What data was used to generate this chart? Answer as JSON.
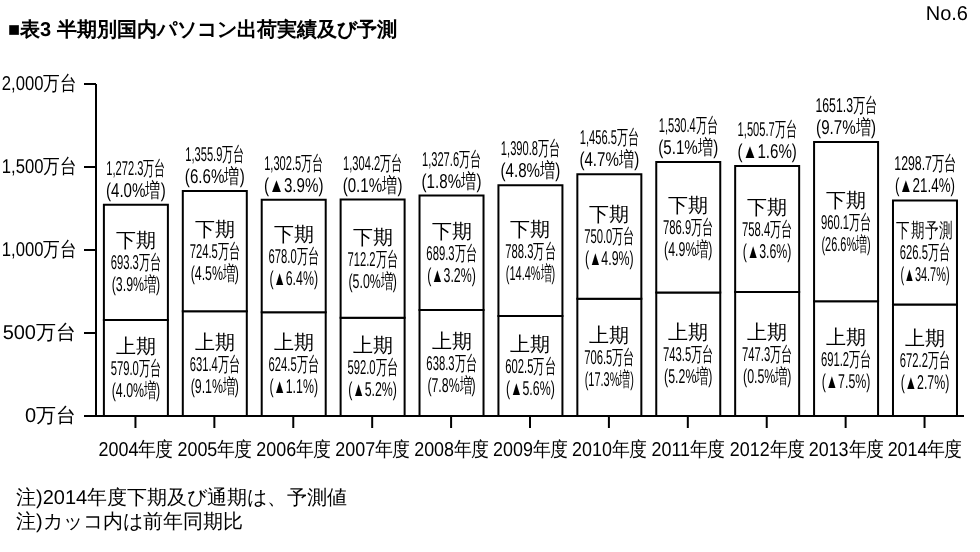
{
  "chart_data": {
    "type": "bar",
    "stacked": true,
    "title": "■表3 半期別国内パソコン出荷実績及び予測",
    "categories": [
      "2004年度",
      "2005年度",
      "2006年度",
      "2007年度",
      "2008年度",
      "2009年度",
      "2010年度",
      "2011年度",
      "2012年度",
      "2013年度",
      "2014年度"
    ],
    "series": [
      {
        "color": "#ffffff",
        "values": [
          579.0,
          631.4,
          624.5,
          592.0,
          638.3,
          602.5,
          706.5,
          743.5,
          747.3,
          691.2,
          672.2
        ],
        "value_labels": [
          "上期\n579.0万台\n(4.0%増)",
          "上期\n631.4万台\n(9.1%増)",
          "上期\n624.5万台\n(▲1.1%)",
          "上期\n592.0万台\n(▲5.2%)",
          "上期\n638.3万台\n(7.8%増)",
          "上期\n602.5万台\n(▲5.6%)",
          "上期\n706.5万台\n(17.3%増)",
          "上期\n743.5万台\n(5.2%増)",
          "上期\n747.3万台\n(0.5%増)",
          "上期\n691.2万台\n(▲7.5%)",
          "上期\n672.2万台\n(▲2.7%)"
        ]
      },
      {
        "color": "#ffffff",
        "values": [
          693.3,
          724.5,
          678.0,
          712.2,
          689.3,
          788.3,
          750.0,
          786.9,
          758.4,
          960.1,
          626.5
        ],
        "value_labels": [
          "下期\n693.3万台\n(3.9%増)",
          "下期\n724.5万台\n(4.5%増)",
          "下期\n678.0万台\n(▲6.4%)",
          "下期\n712.2万台\n(5.0%増)",
          "下期\n689.3万台\n(▲3.2%)",
          "下期\n788.3万台\n(14.4%増)",
          "下期\n750.0万台\n(▲4.9%)",
          "下期\n786.9万台\n(4.9%増)",
          "下期\n758.4万台\n(▲3.6%)",
          "下期\n960.1万台\n(26.6%増)",
          "下期予測\n626.5万台\n(▲34.7%)"
        ]
      }
    ],
    "totals": [
      "1,272.3万台\n(4.0%増)",
      "1,355.9万台\n(6.6%増)",
      "1,302.5万台\n(▲3.9%)",
      "1,304.2万台\n(0.1%増)",
      "1,327.6万台\n(1.8%増)",
      "1,390.8万台\n(4.8%増)",
      "1,456.5万台\n(4.7%増)",
      "1,530.4万台\n(5.1%増)",
      "1,505.7万台\n(▲1.6%)",
      "1651.3万台\n(9.7%増)",
      "1298.7万台\n(▲21.4%)"
    ],
    "ylim": [
      0,
      2000
    ],
    "yticks": [
      {
        "value": 0,
        "label": "0万台"
      },
      {
        "value": 500,
        "label": "500万台"
      },
      {
        "value": 1000,
        "label": "1,000万台"
      },
      {
        "value": 1500,
        "label": "1,500万台"
      },
      {
        "value": 2000,
        "label": "2,000万台"
      }
    ],
    "annotations": [
      "No.6",
      "注)2014年度下期及び通期は、予測値",
      "注)カッコ内は前年同期比"
    ]
  }
}
